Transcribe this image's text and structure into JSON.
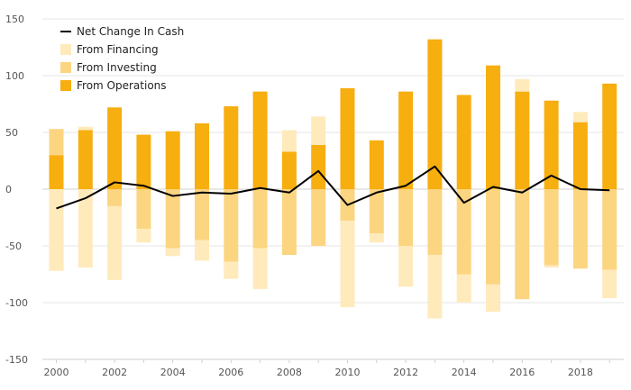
{
  "chart_data": {
    "type": "bar",
    "stacked": true,
    "title": "",
    "xlabel": "",
    "ylabel": "",
    "ylim": [
      -150,
      150
    ],
    "yticks": [
      -150,
      -100,
      -50,
      0,
      50,
      100,
      150
    ],
    "xtick_labels": [
      "2000",
      "2002",
      "2004",
      "2006",
      "2008",
      "2010",
      "2012",
      "2014",
      "2016",
      "2018"
    ],
    "grid": true,
    "legend_position": "top-left",
    "categories": [
      "2000",
      "2001",
      "2002",
      "2003",
      "2004",
      "2005",
      "2006",
      "2007",
      "2008",
      "2009",
      "2010",
      "2011",
      "2012",
      "2013",
      "2014",
      "2015",
      "2016",
      "2017",
      "2018",
      "2019"
    ],
    "series": [
      {
        "name": "From Operations",
        "kind": "bar",
        "color": "#f7ae0f",
        "values": [
          30,
          52,
          72,
          48,
          51,
          58,
          73,
          86,
          33,
          39,
          89,
          43,
          86,
          132,
          83,
          109,
          86,
          78,
          59,
          93
        ]
      },
      {
        "name": "From Investing",
        "kind": "bar",
        "color": "#fcd581",
        "values": [
          23,
          0,
          -15,
          -35,
          -52,
          -45,
          -64,
          -52,
          -58,
          -50,
          -28,
          -39,
          -50,
          -58,
          -75,
          -84,
          -97,
          -67,
          -70,
          -71
        ]
      },
      {
        "name": "From Financing",
        "kind": "bar",
        "color": "#ffeabb",
        "values": [
          -72,
          -69,
          -65,
          -12,
          -7,
          -18,
          -15,
          -36,
          0,
          0,
          -76,
          -8,
          -36,
          -56,
          -25,
          -24,
          0,
          -2,
          0,
          -25
        ]
      },
      {
        "name": "From Financing (positive)",
        "kind": "bar",
        "color": "#ffeabb",
        "legend": false,
        "values": [
          0,
          3,
          0,
          0,
          0,
          0,
          0,
          0,
          19,
          25,
          0,
          0,
          0,
          0,
          0,
          0,
          11,
          0,
          9,
          0
        ]
      },
      {
        "name": "Net Change In Cash",
        "kind": "line",
        "color": "#000000",
        "values": [
          -17,
          -8,
          6,
          3,
          -6,
          -3,
          -4,
          1,
          -3,
          16,
          -14,
          -3,
          3,
          20,
          -12,
          2,
          -3,
          12,
          0,
          -1
        ]
      }
    ],
    "legend": [
      {
        "label": "Net Change In Cash",
        "color": "#000000",
        "marker": "line"
      },
      {
        "label": "From Financing",
        "color": "#ffeabb",
        "marker": "square"
      },
      {
        "label": "From Investing",
        "color": "#fcd581",
        "marker": "square"
      },
      {
        "label": "From Operations",
        "color": "#f7ae0f",
        "marker": "square"
      }
    ]
  }
}
